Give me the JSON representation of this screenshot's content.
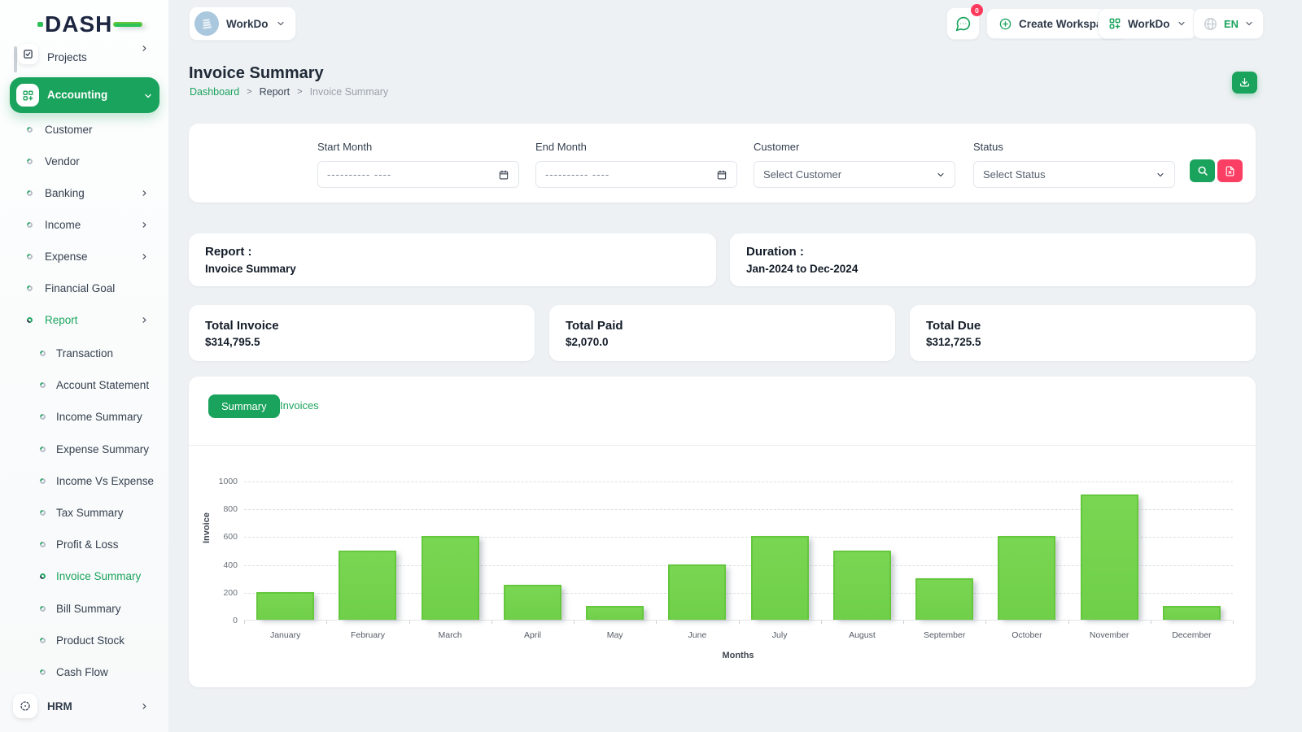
{
  "theme": {
    "green": "#1aa35c",
    "red": "#fb3e63",
    "bar_fill": "#74d14c",
    "bar_border": "#64c73c"
  },
  "brand": {
    "logo_text": "DASH"
  },
  "topbar": {
    "workspace": {
      "label": "WorkDo",
      "icon": "building-avatar-icon"
    },
    "messages": {
      "badge": "0",
      "icon": "chat-icon"
    },
    "create_workspace": {
      "label": "Create Workspace",
      "icon": "plus-circle-icon"
    },
    "workspace_menu": {
      "label": "WorkDo",
      "icon": "grid-plus-icon"
    },
    "language": {
      "code": "EN",
      "icon": "globe-icon"
    }
  },
  "sidebar": {
    "projects": {
      "label": "Projects",
      "icon": "checkbox-icon",
      "chevron": "right"
    },
    "accounting": {
      "label": "Accounting",
      "icon": "grid-plus-icon",
      "chevron": "down",
      "active": true
    },
    "accounting_items": [
      {
        "label": "Customer"
      },
      {
        "label": "Vendor"
      },
      {
        "label": "Banking",
        "chevron": "right"
      },
      {
        "label": "Income",
        "chevron": "right"
      },
      {
        "label": "Expense",
        "chevron": "right"
      },
      {
        "label": "Financial Goal"
      },
      {
        "label": "Report",
        "chevron": "right",
        "active": true
      }
    ],
    "report_items": [
      "Transaction",
      "Account Statement",
      "Income Summary",
      "Expense Summary",
      "Income Vs Expense",
      "Tax Summary",
      "Profit & Loss",
      "Invoice Summary",
      "Bill Summary",
      "Product Stock",
      "Cash Flow"
    ],
    "report_active": "Invoice Summary",
    "hrm": {
      "label": "HRM",
      "icon": "target-icon",
      "chevron": "right"
    }
  },
  "page": {
    "title": "Invoice Summary",
    "breadcrumb": [
      {
        "label": "Dashboard",
        "style": "link"
      },
      {
        "label": "Report",
        "style": "plain"
      },
      {
        "label": "Invoice Summary",
        "style": "muted"
      }
    ],
    "download_icon": "download-icon"
  },
  "filters": {
    "fields": [
      {
        "label": "Start Month",
        "type": "month",
        "placeholder": "---------- ----",
        "icon": "calendar-icon"
      },
      {
        "label": "End Month",
        "type": "month",
        "placeholder": "---------- ----",
        "icon": "calendar-icon"
      },
      {
        "label": "Customer",
        "type": "select",
        "value": "Select Customer",
        "icon": "chevron-down-icon"
      },
      {
        "label": "Status",
        "type": "select",
        "value": "Select Status",
        "icon": "chevron-down-icon"
      }
    ],
    "search_button": {
      "icon": "search-icon"
    },
    "reset_button": {
      "icon": "file-x-icon"
    }
  },
  "info": {
    "report_label": "Report :",
    "report_value": "Invoice Summary",
    "duration_label": "Duration :",
    "duration_value": "Jan-2024 to Dec-2024"
  },
  "totals": [
    {
      "label": "Total Invoice",
      "value": "$314,795.5"
    },
    {
      "label": "Total Paid",
      "value": "$2,070.0"
    },
    {
      "label": "Total Due",
      "value": "$312,725.5"
    }
  ],
  "tabs": [
    {
      "label": "Summary",
      "active": true
    },
    {
      "label": "Invoices",
      "active": false
    }
  ],
  "chart_data": {
    "type": "bar",
    "title": "",
    "categories": [
      "January",
      "February",
      "March",
      "April",
      "May",
      "June",
      "July",
      "August",
      "September",
      "October",
      "November",
      "December"
    ],
    "values": [
      200,
      500,
      600,
      250,
      100,
      400,
      600,
      500,
      300,
      600,
      900,
      100
    ],
    "series_name": "Invoice",
    "xlabel": "Months",
    "ylabel": "Invoice",
    "ylim": [
      0,
      1000
    ],
    "yticks": [
      0,
      200,
      400,
      600,
      800,
      1000
    ],
    "grid": "dashed-horizontal",
    "legend": "none",
    "bar_color": "#74d14c"
  }
}
